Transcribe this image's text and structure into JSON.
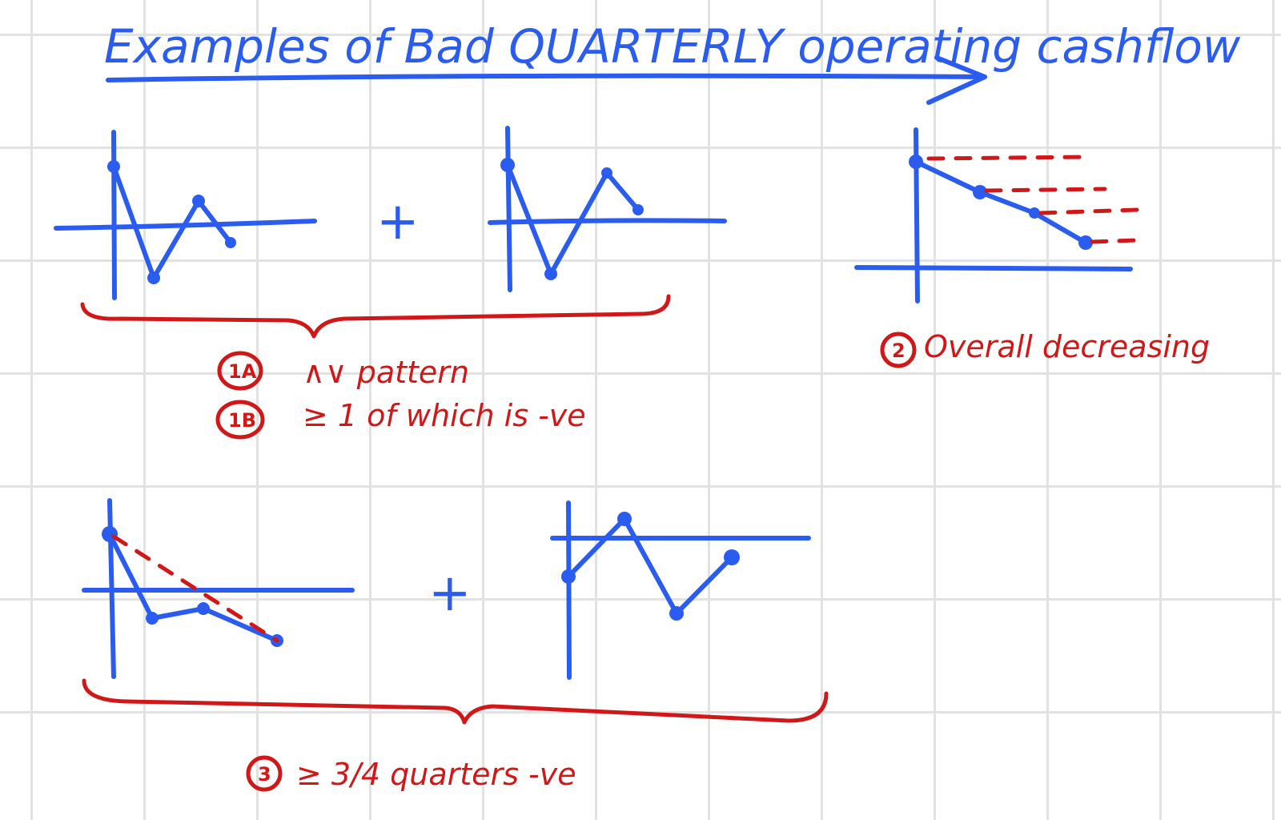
{
  "title": "Examples of Bad QUARTERLY operating cashflow",
  "plus_symbol": "+",
  "notes": {
    "n1a_badge": "1A",
    "n1a_text": "∧∨ pattern",
    "n1b_badge": "1B",
    "n1b_text": "≥ 1 of which is -ve",
    "n2_badge": "2",
    "n2_text": "Overall decreasing",
    "n3_badge": "3",
    "n3_text": "≥ 3/4 quarters -ve"
  },
  "colors": {
    "blue_ink": "#2a5cf0",
    "red_ink": "#d01818",
    "grid": "#e2e2e2"
  }
}
